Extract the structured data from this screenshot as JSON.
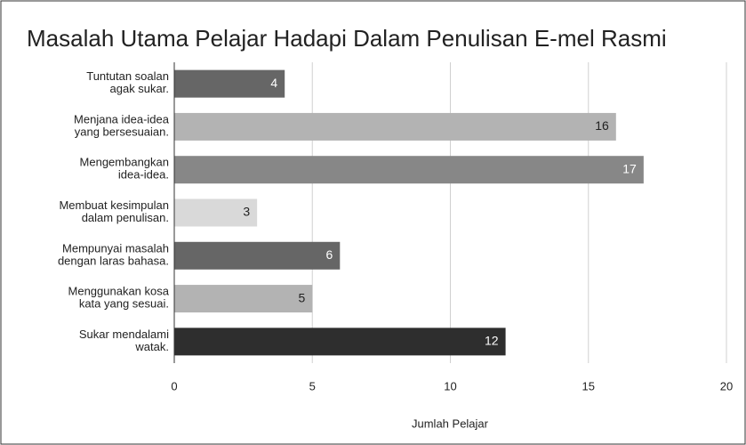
{
  "chart_data": {
    "type": "hbar",
    "title": "Masalah Utama Pelajar Hadapi Dalam Penulisan E-mel Rasmi",
    "categories": [
      "Tuntutan soalan\nagak sukar.",
      "Menjana idea-idea\nyang bersesuaian.",
      "Mengembangkan\nidea-idea.",
      "Membuat kesimpulan\ndalam penulisan.",
      "Mempunyai masalah\ndengan laras bahasa.",
      "Menggunakan kosa\nkata yang sesuai.",
      "Sukar mendalami\nwatak."
    ],
    "values": [
      4,
      16,
      17,
      3,
      6,
      5,
      12
    ],
    "colors": [
      "#666666",
      "#b3b3b3",
      "#878787",
      "#d9d9d9",
      "#666666",
      "#b3b3b3",
      "#2e2e2e"
    ],
    "xlabel": "Jumlah Pelajar",
    "xlim": [
      0,
      20
    ],
    "xticks": [
      0,
      5,
      10,
      15,
      20
    ],
    "grid": true
  }
}
